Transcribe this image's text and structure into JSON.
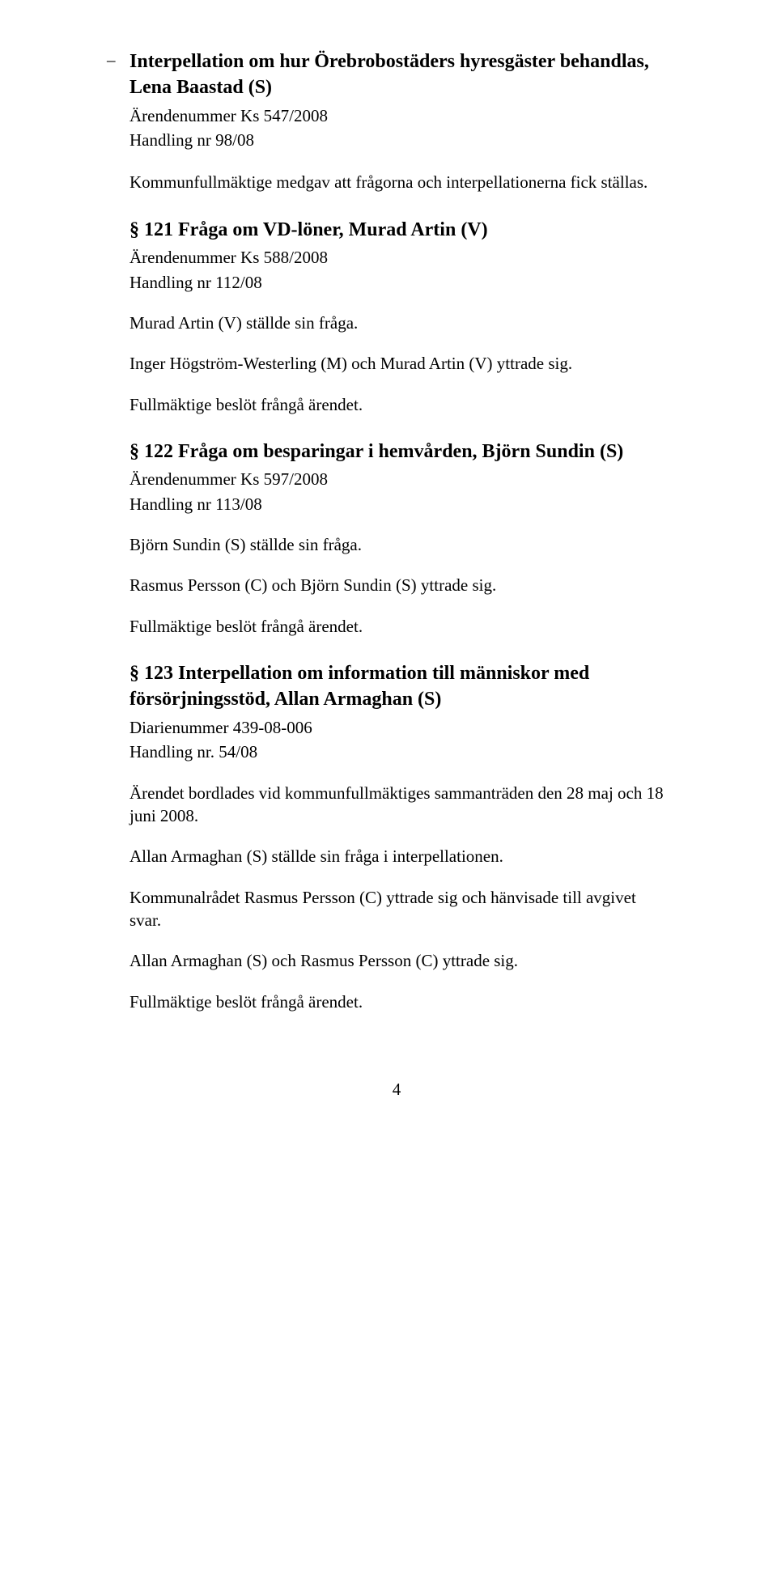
{
  "item0": {
    "dash": "–",
    "title": "Interpellation om hur Örebrobostäders hyresgäster behandlas, Lena Baastad (S)",
    "ref1": "Ärendenummer Ks 547/2008",
    "ref2": "Handling nr 98/08",
    "p1": "Kommunfullmäktige medgav att frågorna och interpellationerna fick ställas."
  },
  "s121": {
    "title": "§ 121  Fråga om VD-löner, Murad Artin (V)",
    "ref1": "Ärendenummer Ks 588/2008",
    "ref2": "Handling nr 112/08",
    "p1": "Murad Artin (V) ställde sin fråga.",
    "p2": "Inger Högström-Westerling (M) och Murad Artin (V) yttrade sig.",
    "p3": "Fullmäktige beslöt frångå ärendet."
  },
  "s122": {
    "title": "§ 122  Fråga om besparingar i hemvården, Björn Sundin (S)",
    "ref1": "Ärendenummer Ks 597/2008",
    "ref2": "Handling nr 113/08",
    "p1": "Björn Sundin (S) ställde sin fråga.",
    "p2": "Rasmus Persson (C) och Björn Sundin (S) yttrade sig.",
    "p3": "Fullmäktige beslöt frångå ärendet."
  },
  "s123": {
    "title": "§ 123  Interpellation om information till människor med försörjningsstöd, Allan Armaghan (S)",
    "ref1": "Diarienummer 439-08-006",
    "ref2": "Handling nr. 54/08",
    "p1": "Ärendet bordlades vid kommunfullmäktiges sammanträden den 28 maj och 18 juni 2008.",
    "p2": "Allan Armaghan (S) ställde sin fråga i interpellationen.",
    "p3": "Kommunalrådet Rasmus Persson (C) yttrade sig och hänvisade till avgivet svar.",
    "p4": "Allan Armaghan (S) och Rasmus Persson (C) yttrade sig.",
    "p5": "Fullmäktige beslöt frångå ärendet."
  },
  "page": "4"
}
